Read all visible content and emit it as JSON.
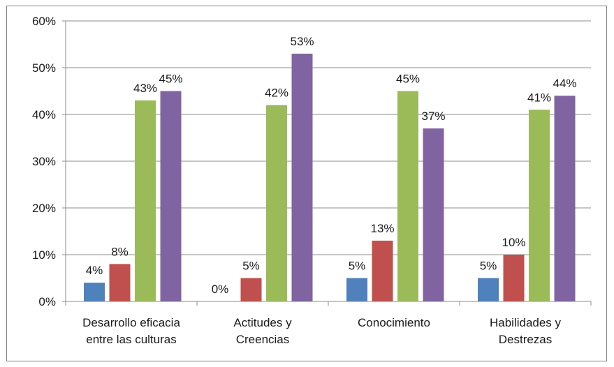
{
  "chart_data": {
    "type": "bar",
    "categories": [
      [
        "Desarrollo eficacia",
        "entre las culturas"
      ],
      [
        "Actitudes y",
        "Creencias"
      ],
      [
        "Conocimiento"
      ],
      [
        "Habilidades y",
        "Destrezas"
      ]
    ],
    "series": [
      {
        "color": "#4f81bd",
        "values": [
          4,
          0,
          5,
          5
        ]
      },
      {
        "color": "#c0504d",
        "values": [
          8,
          5,
          13,
          10
        ]
      },
      {
        "color": "#9bbb59",
        "values": [
          43,
          42,
          45,
          41
        ]
      },
      {
        "color": "#8064a2",
        "values": [
          45,
          53,
          37,
          44
        ]
      }
    ],
    "data_labels": [
      [
        "4%",
        "0%",
        "5%",
        "5%"
      ],
      [
        "8%",
        "5%",
        "13%",
        "10%"
      ],
      [
        "43%",
        "42%",
        "45%",
        "41%"
      ],
      [
        "45%",
        "53%",
        "37%",
        "44%"
      ]
    ],
    "y_ticks": [
      "0%",
      "10%",
      "20%",
      "30%",
      "40%",
      "50%",
      "60%"
    ],
    "ylim": [
      0,
      60
    ],
    "grid": true,
    "legend": "none",
    "title": "",
    "xlabel": "",
    "ylabel": ""
  }
}
